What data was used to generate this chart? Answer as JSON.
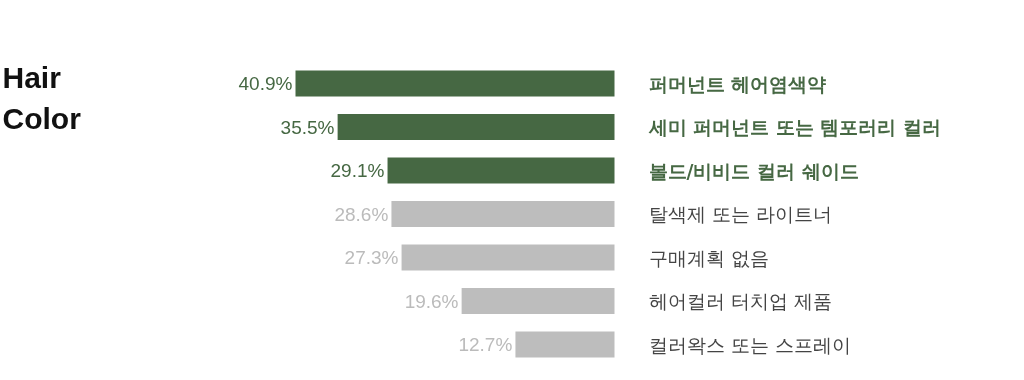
{
  "chart_data": {
    "type": "bar",
    "orientation": "horizontal",
    "title": "Hair\nColor",
    "categories": [
      "퍼머넌트 헤어염색약",
      "세미 퍼머넌트 또는 템포러리 컬러",
      "볼드/비비드 컬러 쉐이드",
      "탈색제 또는 라이트너",
      "구매계획 없음",
      "헤어컬러 터치업 제품",
      "컬러왁스 또는 스프레이"
    ],
    "values": [
      40.9,
      35.5,
      29.1,
      28.6,
      27.3,
      19.6,
      12.7
    ],
    "colors": [
      "#466843",
      "#466843",
      "#466843",
      "#bdbdbd",
      "#bdbdbd",
      "#bdbdbd",
      "#bdbdbd"
    ],
    "value_labels": [
      "40.9%",
      "35.5%",
      "29.1%",
      "28.6%",
      "27.3%",
      "19.6%",
      "12.7%"
    ],
    "grid": false
  }
}
